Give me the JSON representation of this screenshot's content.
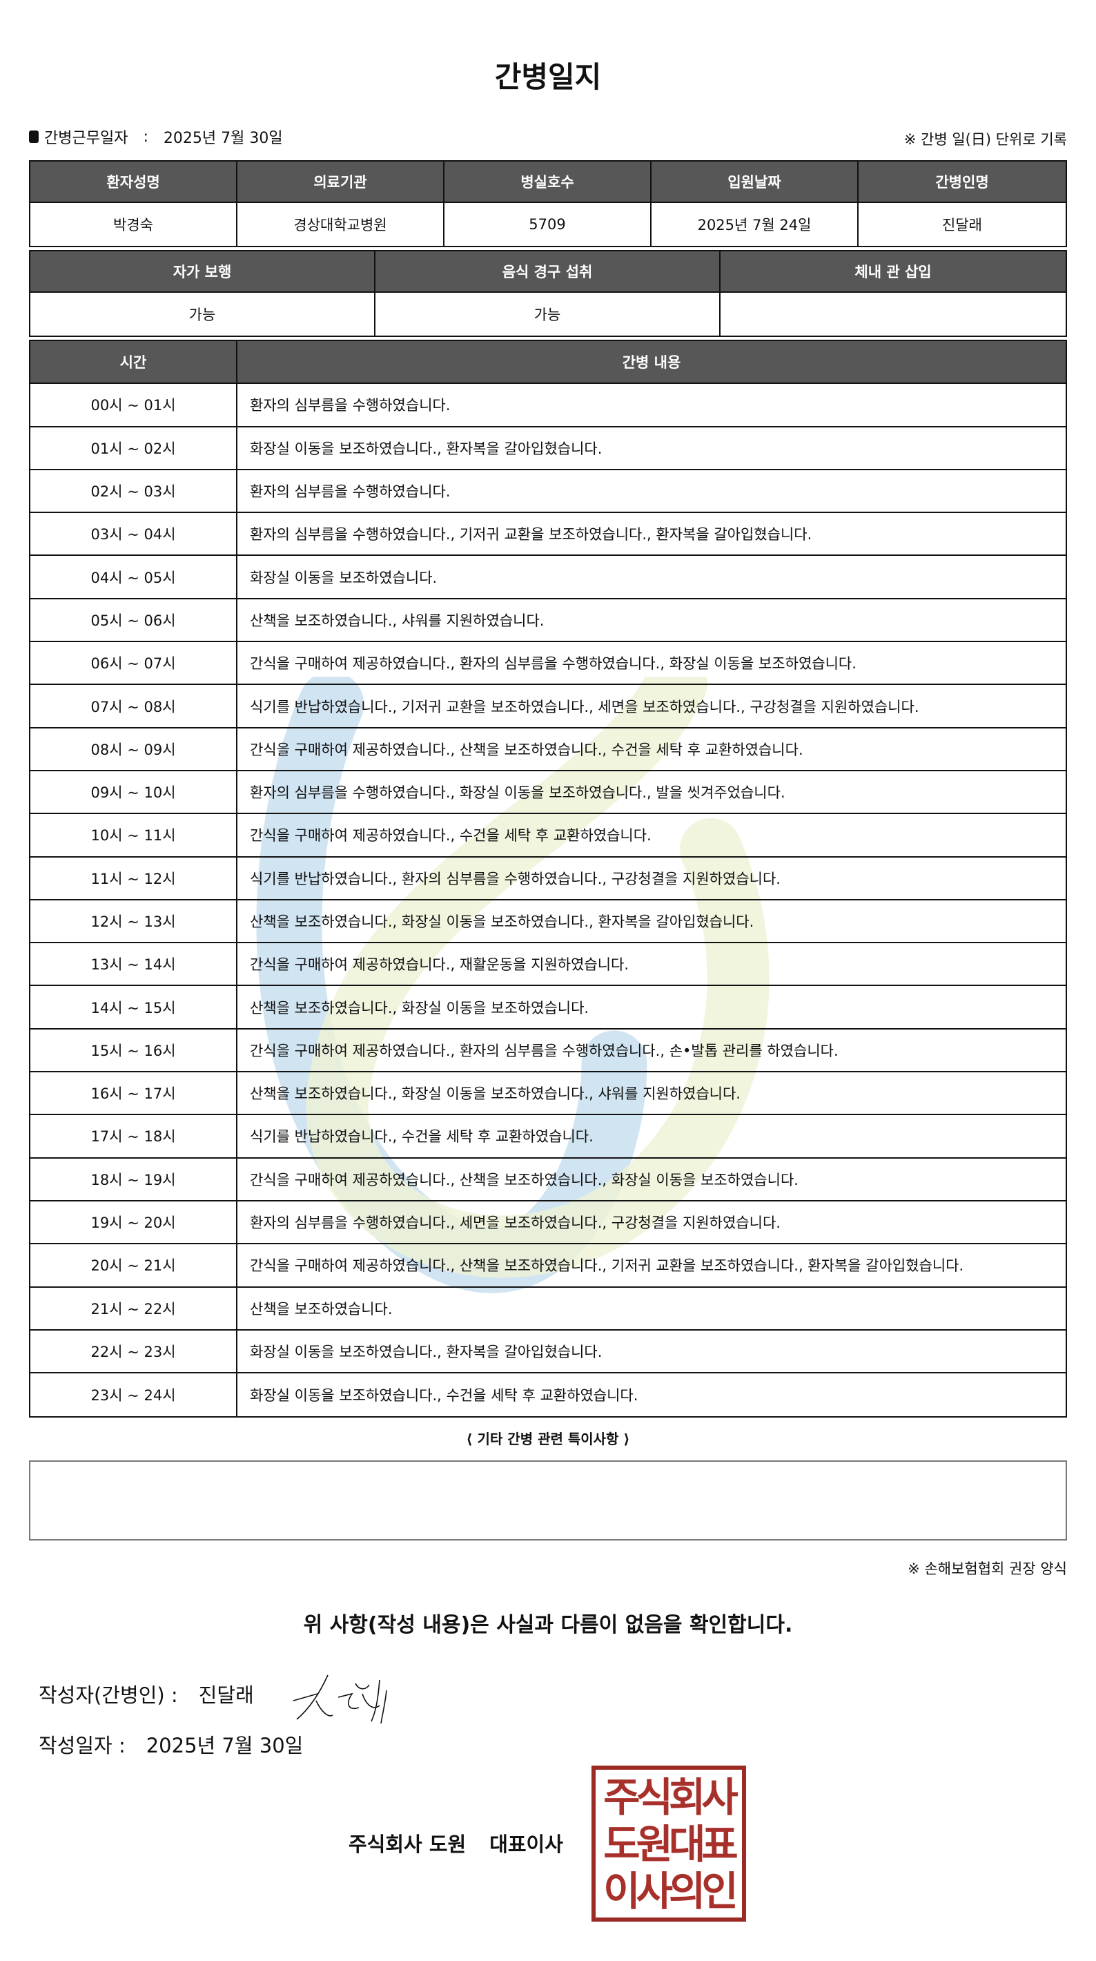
{
  "title": "간병일지",
  "work_date_label": "간병근무일자",
  "work_date_sep": ":",
  "work_date": "2025년 7월 30일",
  "note_right": "※ 간병 일(日) 단위로 기록",
  "info_table": {
    "headers": [
      "환자성명",
      "의료기관",
      "병실호수",
      "입원날짜",
      "간병인명"
    ],
    "values": [
      "박경숙",
      "경상대학교병원",
      "5709",
      "2025년 7월 24일",
      "진달래"
    ]
  },
  "status_table": {
    "headers": [
      "자가 보행",
      "음식 경구 섭취",
      "체내 관 삽입"
    ],
    "values": [
      "가능",
      "가능",
      ""
    ]
  },
  "log_table": {
    "headers": [
      "시간",
      "간병 내용"
    ],
    "rows": [
      {
        "time": "00시 ~ 01시",
        "content": "환자의 심부름을 수행하였습니다."
      },
      {
        "time": "01시 ~ 02시",
        "content": "화장실 이동을 보조하였습니다., 환자복을 갈아입혔습니다."
      },
      {
        "time": "02시 ~ 03시",
        "content": "환자의 심부름을 수행하였습니다."
      },
      {
        "time": "03시 ~ 04시",
        "content": "환자의 심부름을 수행하였습니다., 기저귀 교환을 보조하였습니다., 환자복을 갈아입혔습니다."
      },
      {
        "time": "04시 ~ 05시",
        "content": "화장실 이동을 보조하였습니다."
      },
      {
        "time": "05시 ~ 06시",
        "content": "산책을 보조하였습니다., 샤워를 지원하였습니다."
      },
      {
        "time": "06시 ~ 07시",
        "content": "간식을 구매하여 제공하였습니다., 환자의 심부름을 수행하였습니다., 화장실 이동을 보조하였습니다."
      },
      {
        "time": "07시 ~ 08시",
        "content": "식기를 반납하였습니다., 기저귀 교환을 보조하였습니다., 세면을 보조하였습니다., 구강청결을 지원하였습니다."
      },
      {
        "time": "08시 ~ 09시",
        "content": "간식을 구매하여 제공하였습니다., 산책을 보조하였습니다., 수건을 세탁 후 교환하였습니다."
      },
      {
        "time": "09시 ~ 10시",
        "content": "환자의 심부름을 수행하였습니다., 화장실 이동을 보조하였습니다., 발을 씻겨주었습니다."
      },
      {
        "time": "10시 ~ 11시",
        "content": "간식을 구매하여 제공하였습니다., 수건을 세탁 후 교환하였습니다."
      },
      {
        "time": "11시 ~ 12시",
        "content": "식기를 반납하였습니다., 환자의 심부름을 수행하였습니다., 구강청결을 지원하였습니다."
      },
      {
        "time": "12시 ~ 13시",
        "content": "산책을 보조하였습니다., 화장실 이동을 보조하였습니다., 환자복을 갈아입혔습니다."
      },
      {
        "time": "13시 ~ 14시",
        "content": "간식을 구매하여 제공하였습니다., 재활운동을 지원하였습니다."
      },
      {
        "time": "14시 ~ 15시",
        "content": "산책을 보조하였습니다., 화장실 이동을 보조하였습니다."
      },
      {
        "time": "15시 ~ 16시",
        "content": "간식을 구매하여 제공하였습니다., 환자의 심부름을 수행하였습니다., 손•발톱 관리를 하였습니다."
      },
      {
        "time": "16시 ~ 17시",
        "content": "산책을 보조하였습니다., 화장실 이동을 보조하였습니다., 샤워를 지원하였습니다."
      },
      {
        "time": "17시 ~ 18시",
        "content": "식기를 반납하였습니다., 수건을 세탁 후 교환하였습니다."
      },
      {
        "time": "18시 ~ 19시",
        "content": "간식을 구매하여 제공하였습니다., 산책을 보조하였습니다., 화장실 이동을 보조하였습니다."
      },
      {
        "time": "19시 ~ 20시",
        "content": "환자의 심부름을 수행하였습니다., 세면을 보조하였습니다., 구강청결을 지원하였습니다."
      },
      {
        "time": "20시 ~ 21시",
        "content": "간식을 구매하여 제공하였습니다., 산책을 보조하였습니다., 기저귀 교환을 보조하였습니다., 환자복을 갈아입혔습니다."
      },
      {
        "time": "21시 ~ 22시",
        "content": "산책을 보조하였습니다."
      },
      {
        "time": "22시 ~ 23시",
        "content": "화장실 이동을 보조하였습니다., 환자복을 갈아입혔습니다."
      },
      {
        "time": "23시 ~ 24시",
        "content": "화장실 이동을 보조하였습니다., 수건을 세탁 후 교환하였습니다."
      }
    ]
  },
  "notes": {
    "title": "⟨ 기타 간병 관련 특이사항 ⟩",
    "content": ""
  },
  "footnote": "※ 손해보험협회 권장 양식",
  "confirmation": "위 사항(작성 내용)은 사실과 다름이 없음을 확인합니다.",
  "writer": {
    "label": "작성자(간병인) :",
    "name": "진달래"
  },
  "write_date": {
    "label": "작성일자 :",
    "value": "2025년 7월 30일"
  },
  "company": {
    "name": "주식회사 도원",
    "title": "대표이사"
  },
  "stamp": {
    "lines": [
      "주식회사",
      "도원대표",
      "이사의인"
    ],
    "color": "#9c2a25"
  },
  "header_color": "#575757",
  "watermark_colors": [
    "#c9dff0",
    "#eef3d6"
  ]
}
